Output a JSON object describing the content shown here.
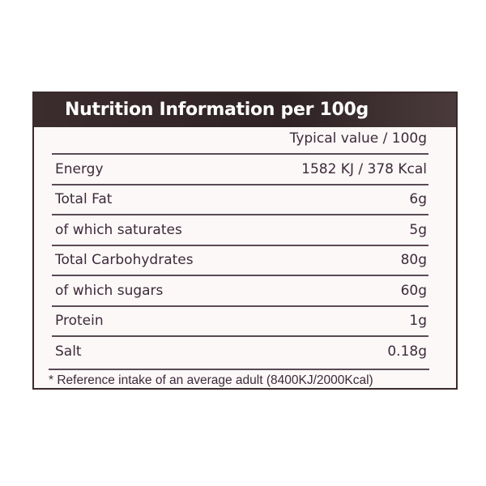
{
  "title": "Nutrition Information per 100g",
  "column_header": "Typical value / 100g",
  "rows": [
    {
      "name": "Energy",
      "value": "1582 KJ / 378 Kcal"
    },
    {
      "name": "Total Fat",
      "value": "6g"
    },
    {
      "name": "of which saturates",
      "value": "5g"
    },
    {
      "name": "Total Carbohydrates",
      "value": "80g"
    },
    {
      "name": "of which sugars",
      "value": "60g"
    },
    {
      "name": "Protein",
      "value": "1g"
    },
    {
      "name": "Salt",
      "value": "0.18g"
    }
  ],
  "footnote": "* Reference intake of an average adult (8400KJ/2000Kcal)",
  "colors": {
    "header_bg": "#2f2325",
    "text": "#3d2a3a"
  }
}
